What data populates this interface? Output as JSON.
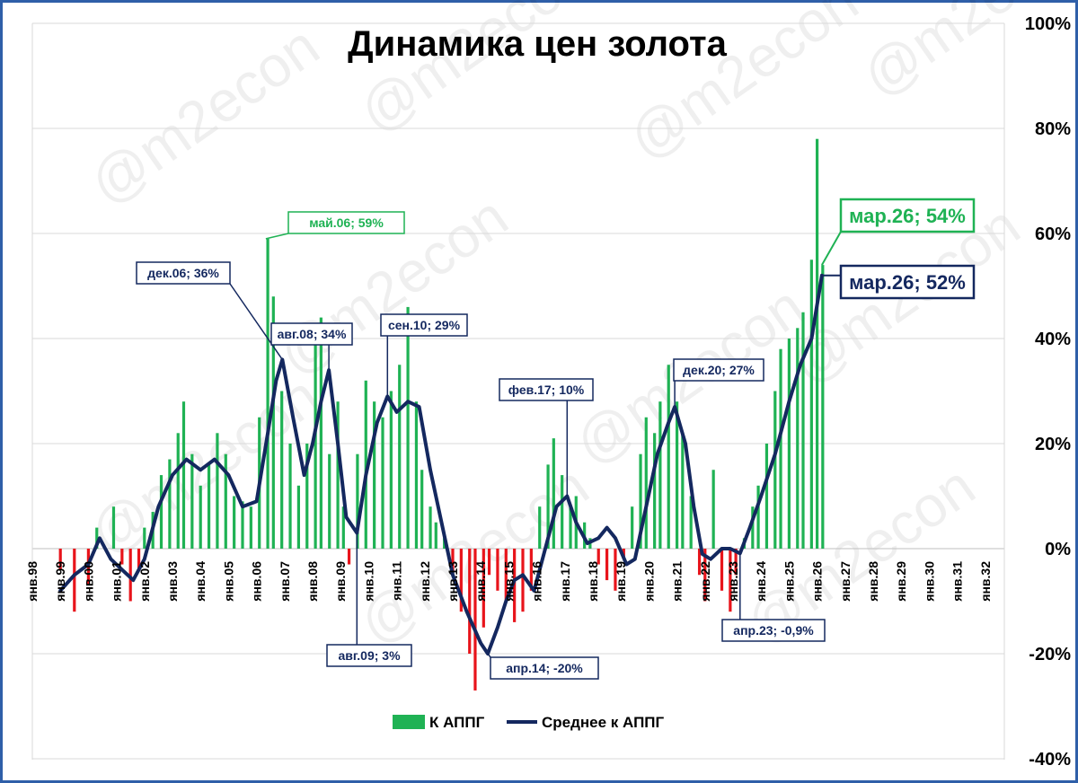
{
  "watermark": "@m2econ",
  "chart_data": {
    "type": "bar",
    "title": "Динамика цен золота",
    "xlabel": "",
    "ylabel": "",
    "ylim": [
      -40,
      100
    ],
    "yticks": [
      -40,
      -20,
      0,
      20,
      40,
      60,
      80,
      100
    ],
    "ytick_labels": [
      "-40%",
      "-20%",
      "0%",
      "20%",
      "40%",
      "60%",
      "80%",
      "100%"
    ],
    "y_axis_side": "right",
    "grid": true,
    "legend_position": "bottom-center",
    "colors": {
      "positive": "#1fb254",
      "negative": "#e8141b",
      "average": "#14285f",
      "ann_green": "#1fb254",
      "ann_navy": "#14285f",
      "frame": "#2f5fa8"
    },
    "x_categories": [
      "янв.98",
      "янв.99",
      "янв.00",
      "янв.01",
      "янв.02",
      "янв.03",
      "янв.04",
      "янв.05",
      "янв.06",
      "янв.07",
      "янв.08",
      "янв.09",
      "янв.10",
      "янв.11",
      "янв.12",
      "янв.13",
      "янв.14",
      "янв.15",
      "янв.16",
      "янв.17",
      "янв.18",
      "янв.19",
      "янв.20",
      "янв.21",
      "янв.22",
      "янв.23",
      "янв.24",
      "янв.25",
      "янв.26",
      "янв.27",
      "янв.28",
      "янв.29",
      "янв.30",
      "янв.31",
      "янв.32"
    ],
    "series": [
      {
        "name": "К АППГ",
        "kind": "bar",
        "points": [
          [
            1999.0,
            -4
          ],
          [
            1999.5,
            -12
          ],
          [
            2000.0,
            -7
          ],
          [
            2000.3,
            4
          ],
          [
            2000.6,
            0
          ],
          [
            2000.9,
            8
          ],
          [
            2001.2,
            -3
          ],
          [
            2001.5,
            -10
          ],
          [
            2001.8,
            -4
          ],
          [
            2002.0,
            4
          ],
          [
            2002.3,
            7
          ],
          [
            2002.6,
            14
          ],
          [
            2002.9,
            17
          ],
          [
            2003.2,
            22
          ],
          [
            2003.4,
            28
          ],
          [
            2003.7,
            18
          ],
          [
            2004.0,
            12
          ],
          [
            2004.3,
            16
          ],
          [
            2004.6,
            22
          ],
          [
            2004.9,
            18
          ],
          [
            2005.2,
            10
          ],
          [
            2005.5,
            9
          ],
          [
            2005.8,
            8
          ],
          [
            2006.1,
            25
          ],
          [
            2006.4,
            59
          ],
          [
            2006.6,
            48
          ],
          [
            2006.9,
            30
          ],
          [
            2007.2,
            20
          ],
          [
            2007.5,
            12
          ],
          [
            2007.8,
            20
          ],
          [
            2008.1,
            40
          ],
          [
            2008.3,
            44
          ],
          [
            2008.6,
            18
          ],
          [
            2008.9,
            28
          ],
          [
            2009.1,
            8
          ],
          [
            2009.3,
            -3
          ],
          [
            2009.6,
            18
          ],
          [
            2009.9,
            32
          ],
          [
            2010.2,
            28
          ],
          [
            2010.5,
            25
          ],
          [
            2010.8,
            30
          ],
          [
            2011.1,
            35
          ],
          [
            2011.4,
            46
          ],
          [
            2011.7,
            28
          ],
          [
            2011.9,
            15
          ],
          [
            2012.2,
            8
          ],
          [
            2012.4,
            5
          ],
          [
            2012.7,
            2
          ],
          [
            2013.0,
            -5
          ],
          [
            2013.3,
            -12
          ],
          [
            2013.6,
            -20
          ],
          [
            2013.8,
            -27
          ],
          [
            2014.1,
            -15
          ],
          [
            2014.3,
            -5
          ],
          [
            2014.6,
            -8
          ],
          [
            2014.9,
            -10
          ],
          [
            2015.2,
            -14
          ],
          [
            2015.5,
            -12
          ],
          [
            2015.8,
            -8
          ],
          [
            2016.1,
            8
          ],
          [
            2016.4,
            16
          ],
          [
            2016.6,
            21
          ],
          [
            2016.9,
            14
          ],
          [
            2017.2,
            8
          ],
          [
            2017.4,
            10
          ],
          [
            2017.7,
            5
          ],
          [
            2017.9,
            2
          ],
          [
            2018.2,
            -3
          ],
          [
            2018.5,
            -6
          ],
          [
            2018.8,
            -8
          ],
          [
            2019.1,
            -2
          ],
          [
            2019.4,
            8
          ],
          [
            2019.7,
            18
          ],
          [
            2019.9,
            25
          ],
          [
            2020.2,
            22
          ],
          [
            2020.4,
            28
          ],
          [
            2020.7,
            35
          ],
          [
            2021.0,
            28
          ],
          [
            2021.2,
            22
          ],
          [
            2021.5,
            10
          ],
          [
            2021.8,
            -5
          ],
          [
            2022.0,
            -10
          ],
          [
            2022.3,
            15
          ],
          [
            2022.6,
            -8
          ],
          [
            2022.9,
            -12
          ],
          [
            2023.1,
            -5
          ],
          [
            2023.4,
            2
          ],
          [
            2023.7,
            8
          ],
          [
            2023.9,
            12
          ],
          [
            2024.2,
            20
          ],
          [
            2024.5,
            30
          ],
          [
            2024.7,
            38
          ],
          [
            2025.0,
            40
          ],
          [
            2025.3,
            42
          ],
          [
            2025.5,
            45
          ],
          [
            2025.8,
            55
          ],
          [
            2026.0,
            78
          ],
          [
            2026.2,
            54
          ]
        ]
      },
      {
        "name": "Среднее к АППГ",
        "kind": "line",
        "points": [
          [
            1999.0,
            -8
          ],
          [
            1999.5,
            -5
          ],
          [
            2000.0,
            -3
          ],
          [
            2000.4,
            2
          ],
          [
            2000.8,
            -2
          ],
          [
            2001.2,
            -4
          ],
          [
            2001.6,
            -6
          ],
          [
            2002.0,
            -2
          ],
          [
            2002.5,
            8
          ],
          [
            2003.0,
            14
          ],
          [
            2003.5,
            17
          ],
          [
            2004.0,
            15
          ],
          [
            2004.5,
            17
          ],
          [
            2005.0,
            14
          ],
          [
            2005.5,
            8
          ],
          [
            2006.0,
            9
          ],
          [
            2006.4,
            22
          ],
          [
            2006.7,
            32
          ],
          [
            2006.92,
            36
          ],
          [
            2007.3,
            25
          ],
          [
            2007.7,
            14
          ],
          [
            2008.0,
            20
          ],
          [
            2008.3,
            28
          ],
          [
            2008.58,
            34
          ],
          [
            2008.9,
            20
          ],
          [
            2009.2,
            6
          ],
          [
            2009.58,
            3
          ],
          [
            2009.9,
            14
          ],
          [
            2010.3,
            24
          ],
          [
            2010.67,
            29
          ],
          [
            2011.0,
            26
          ],
          [
            2011.4,
            28
          ],
          [
            2011.8,
            27
          ],
          [
            2012.2,
            15
          ],
          [
            2012.6,
            5
          ],
          [
            2013.0,
            -5
          ],
          [
            2013.5,
            -12
          ],
          [
            2014.0,
            -18
          ],
          [
            2014.25,
            -20
          ],
          [
            2014.6,
            -15
          ],
          [
            2014.9,
            -10
          ],
          [
            2015.2,
            -6
          ],
          [
            2015.5,
            -5
          ],
          [
            2015.9,
            -8
          ],
          [
            2016.3,
            0
          ],
          [
            2016.7,
            8
          ],
          [
            2017.08,
            10
          ],
          [
            2017.4,
            5
          ],
          [
            2017.8,
            1
          ],
          [
            2018.2,
            2
          ],
          [
            2018.5,
            4
          ],
          [
            2018.8,
            2
          ],
          [
            2019.2,
            -3
          ],
          [
            2019.5,
            -2
          ],
          [
            2019.9,
            8
          ],
          [
            2020.3,
            18
          ],
          [
            2020.7,
            24
          ],
          [
            2020.92,
            27
          ],
          [
            2021.3,
            20
          ],
          [
            2021.6,
            8
          ],
          [
            2021.9,
            -1
          ],
          [
            2022.2,
            -2
          ],
          [
            2022.6,
            0
          ],
          [
            2022.9,
            0
          ],
          [
            2023.25,
            -0.9
          ],
          [
            2023.6,
            4
          ],
          [
            2024.0,
            10
          ],
          [
            2024.5,
            18
          ],
          [
            2025.0,
            28
          ],
          [
            2025.4,
            35
          ],
          [
            2025.8,
            40
          ],
          [
            2026.17,
            52
          ]
        ]
      }
    ],
    "annotations": [
      {
        "text": "май.06; 59%",
        "x": 2006.33,
        "y": 59,
        "color": "green",
        "size": "small"
      },
      {
        "text": "дек.06; 36%",
        "x": 2006.92,
        "y": 36,
        "color": "navy",
        "size": "small"
      },
      {
        "text": "авг.08; 34%",
        "x": 2008.58,
        "y": 34,
        "color": "navy",
        "size": "small"
      },
      {
        "text": "сен.10; 29%",
        "x": 2010.67,
        "y": 29,
        "color": "navy",
        "size": "small"
      },
      {
        "text": "авг.09; 3%",
        "x": 2009.58,
        "y": 3,
        "color": "navy",
        "size": "small"
      },
      {
        "text": "фев.17; 10%",
        "x": 2017.08,
        "y": 10,
        "color": "navy",
        "size": "small"
      },
      {
        "text": "апр.14; -20%",
        "x": 2014.25,
        "y": -20,
        "color": "navy",
        "size": "small"
      },
      {
        "text": "дек.20; 27%",
        "x": 2020.92,
        "y": 27,
        "color": "navy",
        "size": "small"
      },
      {
        "text": "апр.23; -0,9%",
        "x": 2023.25,
        "y": -0.9,
        "color": "navy",
        "size": "small"
      },
      {
        "text": "мар.26; 54%",
        "x": 2026.17,
        "y": 54,
        "color": "green",
        "size": "large"
      },
      {
        "text": "мар.26; 52%",
        "x": 2026.17,
        "y": 52,
        "color": "navy",
        "size": "large"
      }
    ]
  }
}
